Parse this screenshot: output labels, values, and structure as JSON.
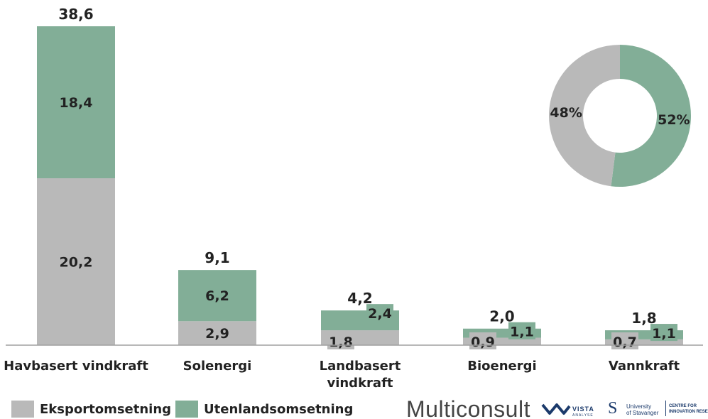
{
  "chart_data": [
    {
      "type": "bar",
      "stacked": true,
      "categories": [
        [
          "Havbasert vindkraft"
        ],
        [
          "Solenergi"
        ],
        [
          "Landbasert",
          "vindkraft"
        ],
        [
          "Bioenergi"
        ],
        [
          "Vannkraft"
        ]
      ],
      "series": [
        {
          "name": "Eksportomsetning",
          "color": "#b9b9b9",
          "values": [
            20.2,
            2.9,
            1.8,
            0.9,
            0.7
          ],
          "labels": [
            "20,2",
            "2,9",
            "1,8",
            "0,9",
            "0,7"
          ]
        },
        {
          "name": "Utenlandsomsetning",
          "color": "#82ae97",
          "values": [
            18.4,
            6.2,
            2.4,
            1.1,
            1.1
          ],
          "labels": [
            "18,4",
            "6,2",
            "2,4",
            "1,1",
            "1,1"
          ]
        }
      ],
      "totals": [
        38.6,
        9.1,
        4.2,
        2.0,
        1.8
      ],
      "total_labels": [
        "38,6",
        "9,1",
        "4,2",
        "2,0",
        "1,8"
      ],
      "ylim": [
        0,
        38.6
      ],
      "grid": false,
      "legend": "bottom-left"
    },
    {
      "type": "pie",
      "donut": true,
      "slices": [
        {
          "name": "Utenlandsomsetning",
          "value": 52,
          "label": "52%",
          "color": "#82ae97"
        },
        {
          "name": "Eksportomsetning",
          "value": 48,
          "label": "48%",
          "color": "#b9b9b9"
        }
      ]
    }
  ],
  "logos": {
    "multiconsult": "Multiconsult",
    "vista": "VISTA",
    "vista_sub": "ANALYSE",
    "uis_mark": "S",
    "uis_text": [
      "University",
      "of Stavanger"
    ],
    "cir_text": [
      "CENTRE FOR",
      "INNOVATION RESEARCH"
    ]
  }
}
